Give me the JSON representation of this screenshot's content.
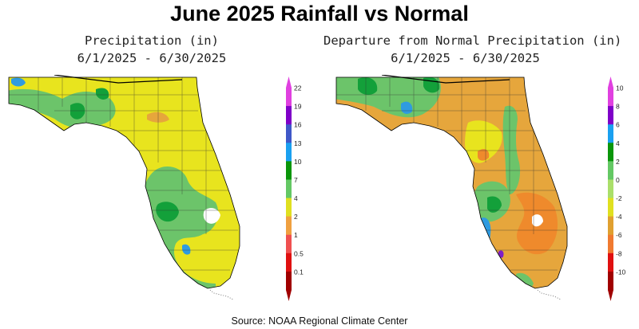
{
  "title": "June 2025 Rainfall vs Normal",
  "left_panel": {
    "title_line1": "Precipitation (in)",
    "title_line2": "6/1/2025 - 6/30/2025",
    "legend": [
      {
        "label": "22",
        "color": "#e040e0"
      },
      {
        "label": "19",
        "color": "#7f00c8"
      },
      {
        "label": "16",
        "color": "#3f58c8"
      },
      {
        "label": "13",
        "color": "#1aa0f0"
      },
      {
        "label": "10",
        "color": "#0a960a"
      },
      {
        "label": "7",
        "color": "#64c864"
      },
      {
        "label": "4",
        "color": "#e0e020"
      },
      {
        "label": "2",
        "color": "#f0a040"
      },
      {
        "label": "1",
        "color": "#f05050"
      },
      {
        "label": "0.5",
        "color": "#e01010"
      },
      {
        "label": "0.1",
        "color": "#a00000"
      }
    ]
  },
  "right_panel": {
    "title_line1": "Departure from Normal Precipitation (in)",
    "title_line2": "6/1/2025 - 6/30/2025",
    "legend": [
      {
        "label": "10",
        "color": "#e040e0"
      },
      {
        "label": "8",
        "color": "#7f00c8"
      },
      {
        "label": "6",
        "color": "#1aa0f0"
      },
      {
        "label": "4",
        "color": "#0a960a"
      },
      {
        "label": "2",
        "color": "#64c864"
      },
      {
        "label": "0",
        "color": "#aadf6a"
      },
      {
        "label": "-2",
        "color": "#e0e020"
      },
      {
        "label": "-4",
        "color": "#e0a030"
      },
      {
        "label": "-6",
        "color": "#f07a30"
      },
      {
        "label": "-8",
        "color": "#e01010"
      },
      {
        "label": "-10",
        "color": "#a00000"
      }
    ]
  },
  "source": "Source:  NOAA Regional Climate Center",
  "colors": {
    "land_yellow": "#e8e41e",
    "green": "#6cc46a",
    "dark_green": "#13a03a",
    "blue": "#2f9be0",
    "orange": "#e6a63c",
    "dark_orange": "#ef8a2c",
    "purple": "#7f1ec8",
    "county_line": "#333333",
    "state_line": "#000000"
  }
}
